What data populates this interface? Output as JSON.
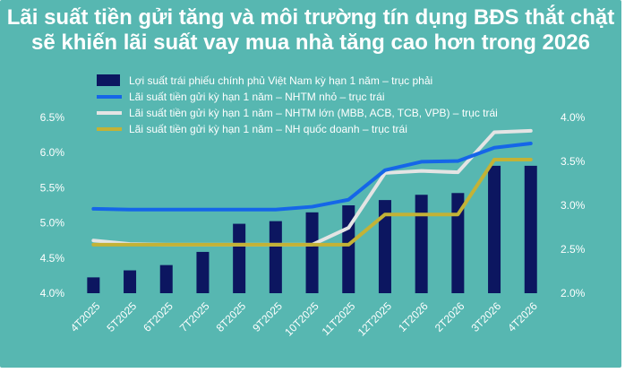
{
  "title_line1": "Lãi suất tiền gửi tăng và môi trường tín dụng BĐS thắt chặt",
  "title_line2": "sẽ khiến lãi suất vay mua nhà tăng cao hơn trong 2026",
  "colors": {
    "background": "#57b7b1",
    "bar": "#0c1660",
    "small_banks": "#1566e8",
    "large_banks": "#e4e4e4",
    "state_banks": "#c3b236",
    "text": "#ffffff"
  },
  "chart_data": {
    "type": "bar+line",
    "title": "Lãi suất tiền gửi tăng và môi trường tín dụng BĐS thắt chặt sẽ khiến lãi suất vay mua nhà tăng cao hơn trong 2026",
    "categories": [
      "4T2025",
      "5T2025",
      "6T2025",
      "7T2025",
      "8T2025",
      "9T2025",
      "10T2025",
      "11T2025",
      "12T2025",
      "1T2026",
      "2T2026",
      "3T2026",
      "4T2026"
    ],
    "left_axis": {
      "ticks": [
        "4.0%",
        "4.5%",
        "5.0%",
        "5.5%",
        "6.0%",
        "6.5%"
      ],
      "range": [
        4.0,
        6.5
      ]
    },
    "right_axis": {
      "ticks": [
        "2.0%",
        "2.5%",
        "3.0%",
        "3.5%",
        "4.0%"
      ],
      "range": [
        2.0,
        4.0
      ]
    },
    "legend_position": "top",
    "grid": false,
    "series": [
      {
        "name": "Lợi suất trái phiếu chính phủ Việt Nam kỳ hạn 1 năm – trục phải",
        "type": "bar",
        "axis": "right",
        "color": "#0c1660",
        "values": [
          2.18,
          2.26,
          2.32,
          2.47,
          2.79,
          2.82,
          2.92,
          3.0,
          3.06,
          3.12,
          3.14,
          3.45,
          3.45
        ]
      },
      {
        "name": "Lãi suất tiền gửi kỳ hạn 1 năm – NHTM nhỏ – trục trái",
        "type": "line",
        "axis": "left",
        "color": "#1566e8",
        "values": [
          5.2,
          5.19,
          5.19,
          5.19,
          5.19,
          5.19,
          5.23,
          5.33,
          5.75,
          5.87,
          5.88,
          6.07,
          6.13
        ]
      },
      {
        "name": "Lãi suất tiền gửi kỳ hạn 1 năm – NHTM lớn (MBB, ACB, TCB, VPB) – trục trái",
        "type": "line",
        "axis": "left",
        "color": "#e4e4e4",
        "values": [
          4.75,
          4.7,
          4.69,
          4.69,
          4.69,
          4.69,
          4.69,
          4.93,
          5.71,
          5.74,
          5.72,
          6.29,
          6.31
        ]
      },
      {
        "name": "Lãi suất tiền gửi kỳ hạn 1 năm – NH quốc doanh – trục trái",
        "type": "line",
        "axis": "left",
        "color": "#c3b236",
        "values": [
          4.69,
          4.69,
          4.69,
          4.69,
          4.69,
          4.69,
          4.69,
          4.69,
          5.12,
          5.12,
          5.12,
          5.9,
          5.9
        ]
      }
    ]
  }
}
